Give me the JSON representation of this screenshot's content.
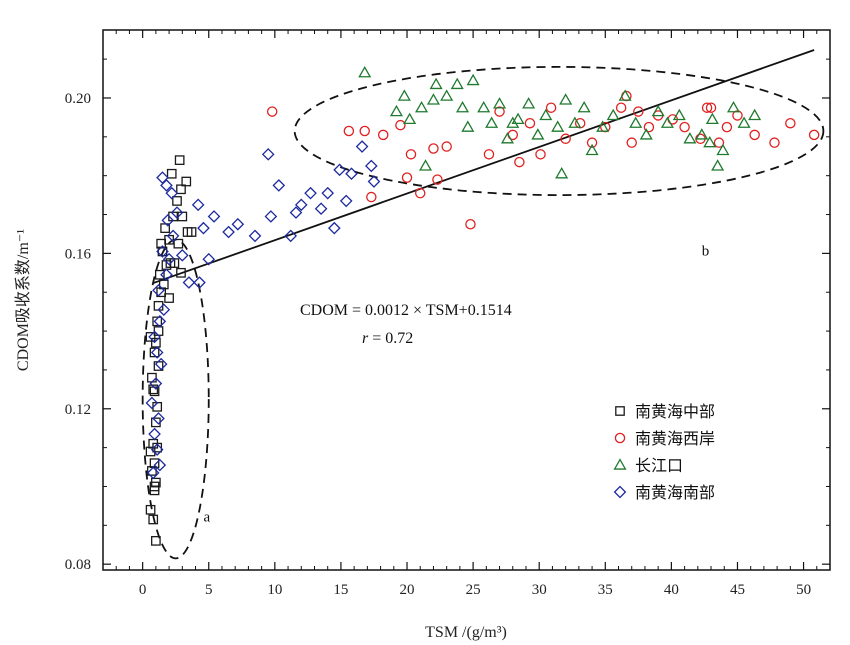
{
  "chart_data": {
    "type": "scatter",
    "xlabel": "TSM /(g/m³)",
    "ylabel": "CDOM吸收系数/m⁻¹",
    "xlim": [
      -3,
      52
    ],
    "ylim": [
      0.0785,
      0.2175
    ],
    "x_ticks": [
      0,
      5,
      10,
      15,
      20,
      25,
      30,
      35,
      40,
      45,
      50
    ],
    "y_ticks": [
      0.08,
      0.12,
      0.16,
      0.2
    ],
    "x_tick_labels": [
      "0",
      "5",
      "10",
      "15",
      "20",
      "25",
      "30",
      "35",
      "40",
      "45",
      "50"
    ],
    "y_tick_labels": [
      "0.08",
      "0.12",
      "0.16",
      "0.20"
    ],
    "grid": false,
    "legend_position": "bottom-right",
    "equation": "CDOM = 0.0012 × TSM+0.1514",
    "r_symbol": "r",
    "r_value": "= 0.72",
    "fit_line": {
      "slope": 0.0012,
      "intercept": 0.1514,
      "x_range": [
        0.8,
        50.8
      ]
    },
    "regions": [
      {
        "label": "a",
        "cx": 2.5,
        "cy": 0.1225,
        "rx": 2.5,
        "ry": 0.041,
        "label_x": 4.6,
        "label_y": 0.091
      },
      {
        "label": "b",
        "cx": 31.5,
        "cy": 0.1915,
        "rx": 20.0,
        "ry": 0.0165,
        "label_x": 42.3,
        "label_y": 0.1595
      }
    ],
    "series": [
      {
        "name": "南黄海中部",
        "marker": "square",
        "color": "#1a1a1a",
        "points": [
          [
            0.8,
            0.0915
          ],
          [
            0.6,
            0.094
          ],
          [
            0.9,
            0.099
          ],
          [
            1.0,
            0.101
          ],
          [
            0.7,
            0.104
          ],
          [
            0.9,
            0.106
          ],
          [
            0.6,
            0.109
          ],
          [
            0.8,
            0.111
          ],
          [
            1.0,
            0.1165
          ],
          [
            1.1,
            0.1205
          ],
          [
            0.9,
            0.1245
          ],
          [
            0.7,
            0.128
          ],
          [
            1.2,
            0.131
          ],
          [
            0.9,
            0.1345
          ],
          [
            0.6,
            0.1385
          ],
          [
            1.1,
            0.1425
          ],
          [
            1.2,
            0.1465
          ],
          [
            1.4,
            0.15
          ],
          [
            1.6,
            0.152
          ],
          [
            1.3,
            0.1545
          ],
          [
            1.8,
            0.157
          ],
          [
            1.5,
            0.1605
          ],
          [
            2.0,
            0.1635
          ],
          [
            1.7,
            0.1665
          ],
          [
            2.3,
            0.1695
          ],
          [
            2.6,
            0.1735
          ],
          [
            2.9,
            0.1765
          ],
          [
            2.2,
            0.1805
          ],
          [
            2.8,
            0.184
          ],
          [
            3.3,
            0.1785
          ],
          [
            3.0,
            0.1695
          ],
          [
            3.4,
            0.1655
          ],
          [
            2.7,
            0.1625
          ],
          [
            2.4,
            0.1575
          ],
          [
            2.9,
            0.155
          ],
          [
            2.0,
            0.1485
          ],
          [
            1.2,
            0.14
          ],
          [
            1.0,
            0.137
          ],
          [
            0.8,
            0.125
          ],
          [
            1.1,
            0.11
          ],
          [
            0.9,
            0.1
          ],
          [
            1.0,
            0.086
          ],
          [
            1.4,
            0.1625
          ],
          [
            3.7,
            0.1655
          ],
          [
            2.1,
            0.1575
          ]
        ]
      },
      {
        "name": "南黄海西岸",
        "marker": "circle",
        "color": "#e02020",
        "points": [
          [
            9.8,
            0.1965
          ],
          [
            15.6,
            0.1915
          ],
          [
            16.8,
            0.1915
          ],
          [
            18.2,
            0.1905
          ],
          [
            19.5,
            0.193
          ],
          [
            20.3,
            0.1855
          ],
          [
            21.0,
            0.1755
          ],
          [
            22.0,
            0.187
          ],
          [
            22.3,
            0.179
          ],
          [
            23.0,
            0.1875
          ],
          [
            24.8,
            0.1675
          ],
          [
            26.2,
            0.1855
          ],
          [
            27.0,
            0.1965
          ],
          [
            28.0,
            0.1905
          ],
          [
            28.5,
            0.1835
          ],
          [
            29.3,
            0.1935
          ],
          [
            30.1,
            0.1855
          ],
          [
            30.9,
            0.1975
          ],
          [
            32.0,
            0.1895
          ],
          [
            33.1,
            0.1935
          ],
          [
            34.0,
            0.1885
          ],
          [
            35.0,
            0.1925
          ],
          [
            36.2,
            0.1975
          ],
          [
            37.0,
            0.1885
          ],
          [
            37.5,
            0.1965
          ],
          [
            38.3,
            0.1925
          ],
          [
            39.0,
            0.1955
          ],
          [
            40.1,
            0.1945
          ],
          [
            41.0,
            0.1925
          ],
          [
            42.2,
            0.1895
          ],
          [
            43.0,
            0.1975
          ],
          [
            43.6,
            0.1885
          ],
          [
            44.2,
            0.1925
          ],
          [
            45.0,
            0.1955
          ],
          [
            46.3,
            0.1905
          ],
          [
            47.8,
            0.1885
          ],
          [
            49.0,
            0.1935
          ],
          [
            50.8,
            0.1905
          ],
          [
            36.6,
            0.2005
          ],
          [
            42.7,
            0.1975
          ],
          [
            17.3,
            0.1745
          ],
          [
            20.0,
            0.1795
          ]
        ]
      },
      {
        "name": "长江口",
        "marker": "triangle",
        "color": "#1f7a2e",
        "points": [
          [
            16.8,
            0.2065
          ],
          [
            19.8,
            0.2005
          ],
          [
            20.2,
            0.1945
          ],
          [
            21.1,
            0.1975
          ],
          [
            22.0,
            0.1995
          ],
          [
            22.2,
            0.2035
          ],
          [
            23.0,
            0.2005
          ],
          [
            23.8,
            0.2035
          ],
          [
            24.2,
            0.1975
          ],
          [
            24.6,
            0.1925
          ],
          [
            25.0,
            0.2045
          ],
          [
            25.8,
            0.1975
          ],
          [
            26.4,
            0.1935
          ],
          [
            27.0,
            0.1985
          ],
          [
            27.6,
            0.1895
          ],
          [
            28.4,
            0.1945
          ],
          [
            29.2,
            0.1985
          ],
          [
            29.9,
            0.1905
          ],
          [
            30.5,
            0.1955
          ],
          [
            31.4,
            0.1925
          ],
          [
            32.0,
            0.1995
          ],
          [
            32.7,
            0.1935
          ],
          [
            33.4,
            0.1975
          ],
          [
            34.0,
            0.1865
          ],
          [
            34.8,
            0.1925
          ],
          [
            35.6,
            0.1955
          ],
          [
            36.5,
            0.2005
          ],
          [
            37.3,
            0.1935
          ],
          [
            38.1,
            0.1905
          ],
          [
            39.0,
            0.1965
          ],
          [
            39.7,
            0.1935
          ],
          [
            40.6,
            0.1955
          ],
          [
            41.4,
            0.1895
          ],
          [
            42.3,
            0.1905
          ],
          [
            43.1,
            0.1945
          ],
          [
            43.9,
            0.1865
          ],
          [
            44.7,
            0.1975
          ],
          [
            45.5,
            0.1935
          ],
          [
            46.3,
            0.1955
          ],
          [
            42.9,
            0.1885
          ],
          [
            43.5,
            0.1825
          ],
          [
            31.7,
            0.1805
          ],
          [
            21.4,
            0.1825
          ],
          [
            19.2,
            0.1965
          ],
          [
            28.0,
            0.1935
          ]
        ]
      },
      {
        "name": "南黄海南部",
        "marker": "diamond",
        "color": "#1c2a9e",
        "points": [
          [
            0.8,
            0.1035
          ],
          [
            1.3,
            0.1055
          ],
          [
            1.1,
            0.1095
          ],
          [
            0.9,
            0.1135
          ],
          [
            1.2,
            0.1175
          ],
          [
            0.7,
            0.1215
          ],
          [
            1.0,
            0.1265
          ],
          [
            1.4,
            0.1315
          ],
          [
            1.1,
            0.1345
          ],
          [
            0.9,
            0.1385
          ],
          [
            1.3,
            0.1425
          ],
          [
            1.6,
            0.1455
          ],
          [
            1.2,
            0.1505
          ],
          [
            1.8,
            0.1545
          ],
          [
            2.0,
            0.1585
          ],
          [
            1.5,
            0.1605
          ],
          [
            2.3,
            0.1645
          ],
          [
            1.9,
            0.1685
          ],
          [
            2.6,
            0.1705
          ],
          [
            2.2,
            0.1755
          ],
          [
            1.8,
            0.1775
          ],
          [
            3.0,
            0.1595
          ],
          [
            3.5,
            0.1525
          ],
          [
            4.3,
            0.1525
          ],
          [
            5.0,
            0.1585
          ],
          [
            4.6,
            0.1665
          ],
          [
            5.4,
            0.1695
          ],
          [
            4.2,
            0.1725
          ],
          [
            6.5,
            0.1655
          ],
          [
            7.2,
            0.1675
          ],
          [
            8.5,
            0.1645
          ],
          [
            9.7,
            0.1695
          ],
          [
            9.5,
            0.1855
          ],
          [
            10.3,
            0.1775
          ],
          [
            11.2,
            0.1645
          ],
          [
            12.0,
            0.1725
          ],
          [
            12.7,
            0.1755
          ],
          [
            13.5,
            0.1715
          ],
          [
            14.0,
            0.1755
          ],
          [
            14.5,
            0.1665
          ],
          [
            15.4,
            0.1735
          ],
          [
            15.8,
            0.1805
          ],
          [
            16.6,
            0.1875
          ],
          [
            17.3,
            0.1825
          ],
          [
            17.5,
            0.1785
          ],
          [
            14.9,
            0.1815
          ],
          [
            11.6,
            0.1705
          ],
          [
            1.5,
            0.1795
          ]
        ]
      }
    ]
  }
}
